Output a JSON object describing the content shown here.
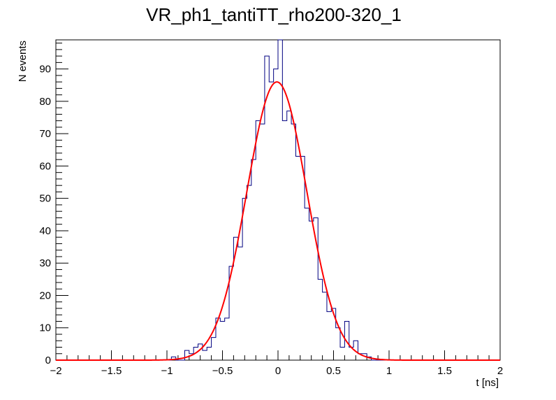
{
  "chart_data": {
    "type": "histogram",
    "title": "VR_ph1_tantiTT_rho200-320_1",
    "xlabel": "t [ns]",
    "ylabel": "N events",
    "xlim": [
      -2,
      2
    ],
    "ylim": [
      0,
      99
    ],
    "grid": false,
    "legend": "none",
    "x_ticks": [
      -2,
      -1.5,
      -1,
      -0.5,
      0,
      0.5,
      1,
      1.5,
      2
    ],
    "x_tick_labels": [
      "−2",
      "−1.5",
      "−1",
      "−0.5",
      "0",
      "0.5",
      "1",
      "1.5",
      "2"
    ],
    "y_ticks": [
      0,
      10,
      20,
      30,
      40,
      50,
      60,
      70,
      80,
      90
    ],
    "y_tick_labels": [
      "0",
      "10",
      "20",
      "30",
      "40",
      "50",
      "60",
      "70",
      "80",
      "90"
    ],
    "bins": {
      "low": -2,
      "high": 2,
      "count": 100,
      "values": [
        0,
        0,
        0,
        0,
        0,
        0,
        0,
        0,
        0,
        0,
        0,
        0,
        0,
        0,
        0,
        0,
        0,
        0,
        0,
        0,
        0,
        0,
        0,
        0,
        0,
        0,
        1,
        0,
        0,
        3,
        2,
        4,
        5,
        3,
        4,
        7,
        13,
        12,
        13,
        29,
        38,
        35,
        50,
        54,
        62,
        74,
        73,
        94,
        86,
        90,
        99,
        74,
        77,
        73,
        63,
        63,
        47,
        43,
        44,
        25,
        21,
        15,
        16,
        10,
        4,
        12,
        4,
        6,
        2,
        2,
        1,
        0,
        0,
        0,
        0,
        0,
        0,
        0,
        0,
        0,
        0,
        0,
        0,
        0,
        0,
        0,
        0,
        0,
        0,
        0,
        0,
        0,
        0,
        0,
        0,
        0,
        0,
        0,
        0,
        0
      ]
    },
    "fit": {
      "type": "gaussian",
      "amplitude": 86,
      "mean": -0.01,
      "sigma": 0.27
    },
    "colors": {
      "histogram": "#000080",
      "fit": "#ff0000",
      "axis": "#000000"
    }
  }
}
